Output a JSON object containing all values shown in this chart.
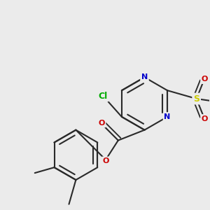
{
  "background_color": "#ebebeb",
  "bond_color": "#2a2a2a",
  "bond_width": 1.5,
  "atom_colors": {
    "N": "#0000cc",
    "O": "#cc0000",
    "S": "#cccc00",
    "Cl": "#00aa00"
  },
  "figsize": [
    3.0,
    3.0
  ],
  "dpi": 100
}
